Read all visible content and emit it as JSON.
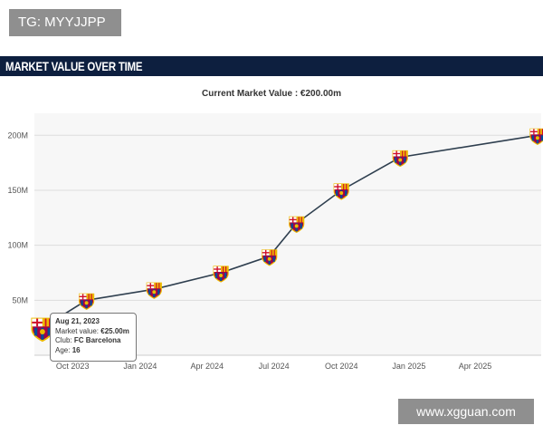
{
  "badge": {
    "text": "TG: MYYJJPP"
  },
  "header": {
    "title": "MARKET VALUE OVER TIME"
  },
  "chart_data": {
    "type": "line",
    "subtitle": "Current Market Value : €200.00m",
    "x_tick_labels": [
      "Oct 2023",
      "Jan 2024",
      "Apr 2024",
      "Jul 2024",
      "Oct 2024",
      "Jan 2025",
      "Apr 2025"
    ],
    "y_tick_labels": [
      "50M",
      "100M",
      "150M",
      "200M"
    ],
    "y_ticks": [
      50,
      100,
      150,
      200
    ],
    "ylim": [
      0,
      220
    ],
    "xlim": [
      "2023-08-10",
      "2025-06-30"
    ],
    "grid": true,
    "series": [
      {
        "values": [
          {
            "x": "2023-08-21",
            "y": 25
          },
          {
            "x": "2023-10-20",
            "y": 50
          },
          {
            "x": "2024-01-20",
            "y": 60
          },
          {
            "x": "2024-04-20",
            "y": 75
          },
          {
            "x": "2024-06-25",
            "y": 90
          },
          {
            "x": "2024-08-01",
            "y": 120
          },
          {
            "x": "2024-10-01",
            "y": 150
          },
          {
            "x": "2024-12-20",
            "y": 180
          },
          {
            "x": "2025-06-25",
            "y": 200
          }
        ],
        "color": "#2f3f4f",
        "marker": "club-crest-icon"
      }
    ],
    "tooltip": {
      "date": "Aug 21, 2023",
      "market_value_label": "Market value:",
      "market_value": "€25.00m",
      "club_label": "Club:",
      "club": "FC Barcelona",
      "age_label": "Age:",
      "age": "16"
    }
  },
  "watermark": {
    "text": "www.xgguan.com"
  },
  "colors": {
    "header": "#0d1f3f",
    "plot_bg": "#f7f7f7",
    "grid": "#dddddd",
    "line": "#2f3f4f"
  }
}
